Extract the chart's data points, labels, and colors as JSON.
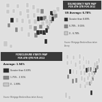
{
  "title_top": "DELINQUENCY RATE MAP\nFOR 4TH QTR FOR 2012",
  "title_bottom": "FORECLOSURE STARTS MAP\nFOR 4TH QTR FOR 2012",
  "legend_top": {
    "average": "US Average: 6.78%",
    "cat1_label": "Greater than 8.89%",
    "cat2_label": "6.78% - 9.00%",
    "cat3_label": "0 - 6.78%",
    "cat1_color": "#2a2a2a",
    "cat2_color": "#888888",
    "cat3_color": "#c8c8c8",
    "source": "Source: Mortgage Bankers Association Survey"
  },
  "legend_bottom": {
    "average": "Average: 1.94%",
    "cat1_label": "Greater than 0.69%",
    "cat2_label": "1.75% - 1.90%",
    "cat3_label": "0 - 1.99%",
    "cat1_color": "#2a2a2a",
    "cat2_color": "#888888",
    "cat3_color": "#c8c8c8",
    "source": "Source: Mortgage Bankers Association Survey"
  },
  "bg_color": "#e0e0e0",
  "map_face": "#d0d0d0",
  "legend_face": "#f8f8f8",
  "header_bg": "#3a3a3a",
  "delinquency_dark_states": [
    "NV",
    "FL",
    "MS",
    "AL",
    "GA",
    "SC",
    "NY",
    "NJ",
    "IL",
    "IN"
  ],
  "delinquency_mid_states": [
    "CA",
    "AZ",
    "TN",
    "NC",
    "OH",
    "MD",
    "RI",
    "CT",
    "LA",
    "AR",
    "MI"
  ],
  "foreclosure_dark_states": [
    "NV",
    "FL",
    "NJ",
    "IL",
    "MD"
  ],
  "foreclosure_mid_states": [
    "CA",
    "AZ",
    "NM",
    "GA",
    "NC",
    "OH",
    "IN",
    "CT",
    "RI"
  ]
}
